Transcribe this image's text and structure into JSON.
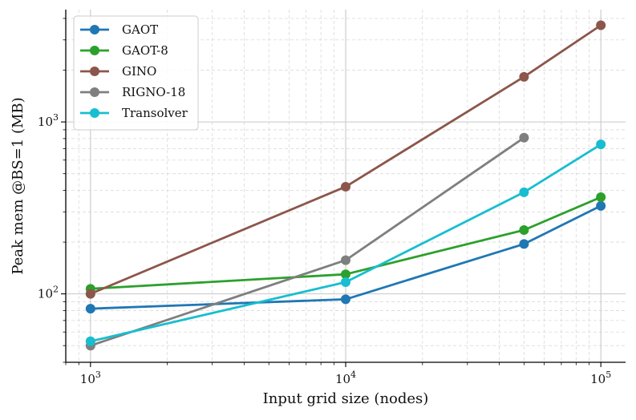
{
  "chart_data": {
    "type": "line",
    "title": "",
    "xlabel": "Input grid size (nodes)",
    "ylabel": "Peak mem @BS=1 (MB)",
    "xscale": "log",
    "yscale": "log",
    "xlim": [
      800,
      125000
    ],
    "ylim": [
      40,
      4500
    ],
    "grid": true,
    "legend_position": "top-left",
    "x_ticks": [
      {
        "value": 1000,
        "base": "10",
        "exp": "3"
      },
      {
        "value": 10000,
        "base": "10",
        "exp": "4"
      },
      {
        "value": 100000,
        "base": "10",
        "exp": "5"
      }
    ],
    "y_ticks": [
      {
        "value": 100,
        "base": "10",
        "exp": "2"
      },
      {
        "value": 1000,
        "base": "10",
        "exp": "3"
      }
    ],
    "series": [
      {
        "name": "GAOT",
        "color": "#1f77b4",
        "x": [
          1000,
          10000,
          50000,
          100000
        ],
        "values": [
          82,
          93,
          195,
          325
        ]
      },
      {
        "name": "GAOT-8",
        "color": "#2ca02c",
        "x": [
          1000,
          10000,
          50000,
          100000
        ],
        "values": [
          107,
          130,
          235,
          365
        ]
      },
      {
        "name": "GINO",
        "color": "#8c564b",
        "x": [
          1000,
          10000,
          50000,
          100000
        ],
        "values": [
          100,
          420,
          1830,
          3650
        ]
      },
      {
        "name": "RIGNO-18",
        "color": "#7f7f7f",
        "x": [
          1000,
          10000,
          50000
        ],
        "values": [
          50,
          157,
          810
        ]
      },
      {
        "name": "Transolver",
        "color": "#17becf",
        "x": [
          1000,
          10000,
          50000,
          100000
        ],
        "values": [
          53,
          117,
          390,
          740
        ]
      }
    ]
  }
}
